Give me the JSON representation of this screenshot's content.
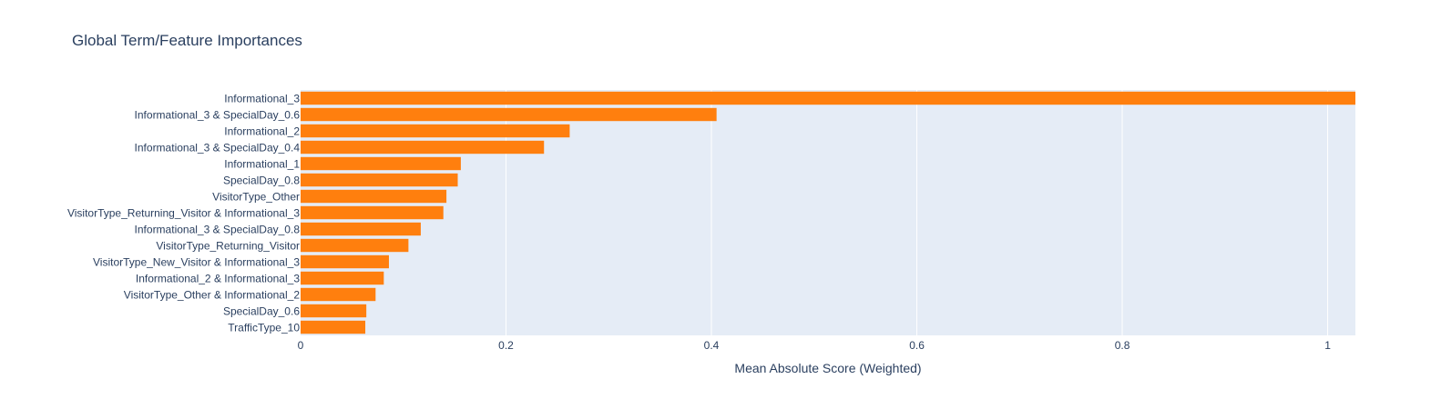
{
  "chart_data": {
    "type": "bar",
    "orientation": "horizontal",
    "title": "Global Term/Feature Importances",
    "xlabel": "Mean Absolute Score (Weighted)",
    "ylabel": "",
    "xlim": [
      0,
      1.027
    ],
    "xticks": [
      0,
      0.2,
      0.4,
      0.6,
      0.8,
      1
    ],
    "xtick_labels": [
      "0",
      "0.2",
      "0.4",
      "0.6",
      "0.8",
      "1"
    ],
    "grid": true,
    "legend": "none",
    "bar_color": "#ff7f0e",
    "plot_background": "#e5ecf6",
    "categories": [
      "Informational_3",
      "Informational_3 & SpecialDay_0.6",
      "Informational_2",
      "Informational_3 & SpecialDay_0.4",
      "Informational_1",
      "SpecialDay_0.8",
      "VisitorType_Other",
      "VisitorType_Returning_Visitor & Informational_3",
      "Informational_3 & SpecialDay_0.8",
      "VisitorType_Returning_Visitor",
      "VisitorType_New_Visitor & Informational_3",
      "Informational_2 & Informational_3",
      "VisitorType_Other & Informational_2",
      "SpecialDay_0.6",
      "TrafficType_10"
    ],
    "values": [
      1.027,
      0.405,
      0.262,
      0.237,
      0.156,
      0.153,
      0.142,
      0.139,
      0.117,
      0.105,
      0.086,
      0.081,
      0.073,
      0.064,
      0.063
    ]
  }
}
